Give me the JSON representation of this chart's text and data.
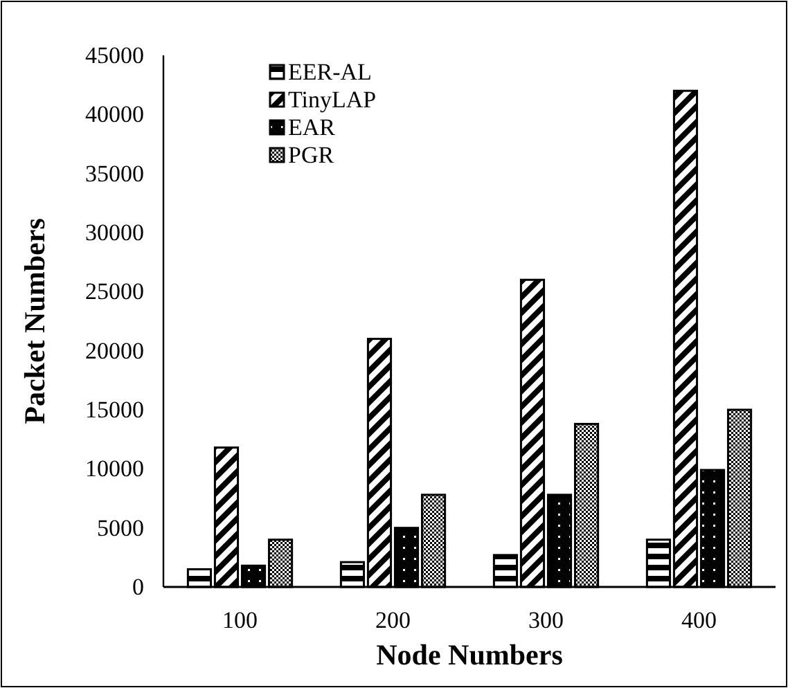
{
  "chart_data": {
    "type": "bar",
    "xlabel": "Node Numbers",
    "ylabel": "Packet Numbers",
    "categories": [
      "100",
      "200",
      "300",
      "400"
    ],
    "series": [
      {
        "name": "EER-AL",
        "color": "#000000",
        "values": [
          1500,
          2100,
          2700,
          4000
        ]
      },
      {
        "name": "TinyLAP",
        "color": "#000000",
        "values": [
          11800,
          21000,
          26000,
          42000
        ]
      },
      {
        "name": "EAR",
        "color": "#000000",
        "values": [
          1800,
          5000,
          7800,
          9900
        ]
      },
      {
        "name": "PGR",
        "color": "#000000",
        "values": [
          4000,
          7800,
          13800,
          15000
        ]
      }
    ],
    "ylim": [
      0,
      45000
    ],
    "yticks": [
      0,
      5000,
      10000,
      15000,
      20000,
      25000,
      30000,
      35000,
      40000,
      45000
    ],
    "grid": false,
    "legend": "top left"
  }
}
